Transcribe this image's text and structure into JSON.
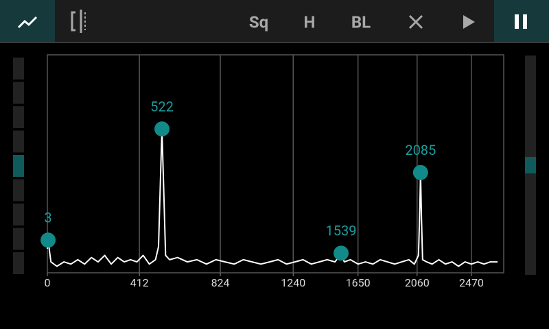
{
  "toolbar": {
    "buttons": [
      "Sq",
      "H",
      "BL"
    ]
  },
  "chart_data": {
    "type": "line",
    "x": [
      0,
      3,
      15,
      40,
      70,
      100,
      130,
      160,
      190,
      220,
      250,
      280,
      310,
      340,
      370,
      400,
      430,
      460,
      490,
      505,
      515,
      522,
      530,
      540,
      560,
      600,
      650,
      700,
      750,
      800,
      850,
      900,
      950,
      1000,
      1050,
      1100,
      1150,
      1200,
      1250,
      1300,
      1350,
      1400,
      1450,
      1500,
      1520,
      1539,
      1560,
      1600,
      1650,
      1700,
      1750,
      1800,
      1850,
      1900,
      1950,
      2000,
      2040,
      2070,
      2080,
      2085,
      2092,
      2100,
      2130,
      2170,
      2220,
      2270,
      2320,
      2370,
      2420,
      2470,
      2520,
      2570,
      2620,
      2680
    ],
    "series": [
      {
        "color": "#ffffff",
        "values": [
          11,
          15,
          5,
          3,
          5,
          4,
          6,
          4,
          7,
          5,
          8,
          4,
          7,
          5,
          6,
          5,
          8,
          4,
          6,
          12,
          45,
          66,
          40,
          8,
          6,
          7,
          5,
          6,
          4,
          6,
          5,
          4,
          6,
          5,
          4,
          5,
          6,
          4,
          5,
          6,
          4,
          5,
          6,
          5,
          7,
          9,
          5,
          6,
          4,
          5,
          4,
          6,
          5,
          4,
          5,
          6,
          4,
          8,
          30,
          46,
          25,
          6,
          5,
          4,
          6,
          4,
          5,
          3,
          5,
          4,
          5,
          4,
          5,
          5
        ]
      }
    ],
    "peaks": {
      "x": [
        3,
        522,
        1539,
        2085
      ],
      "y": [
        15,
        66,
        9,
        46
      ],
      "color": "#138a8a"
    },
    "xlim": [
      0,
      2730
    ],
    "ylim": [
      0,
      100
    ],
    "xticks": [
      0,
      412,
      824,
      1240,
      1650,
      2060,
      2470
    ],
    "grid": true
  }
}
